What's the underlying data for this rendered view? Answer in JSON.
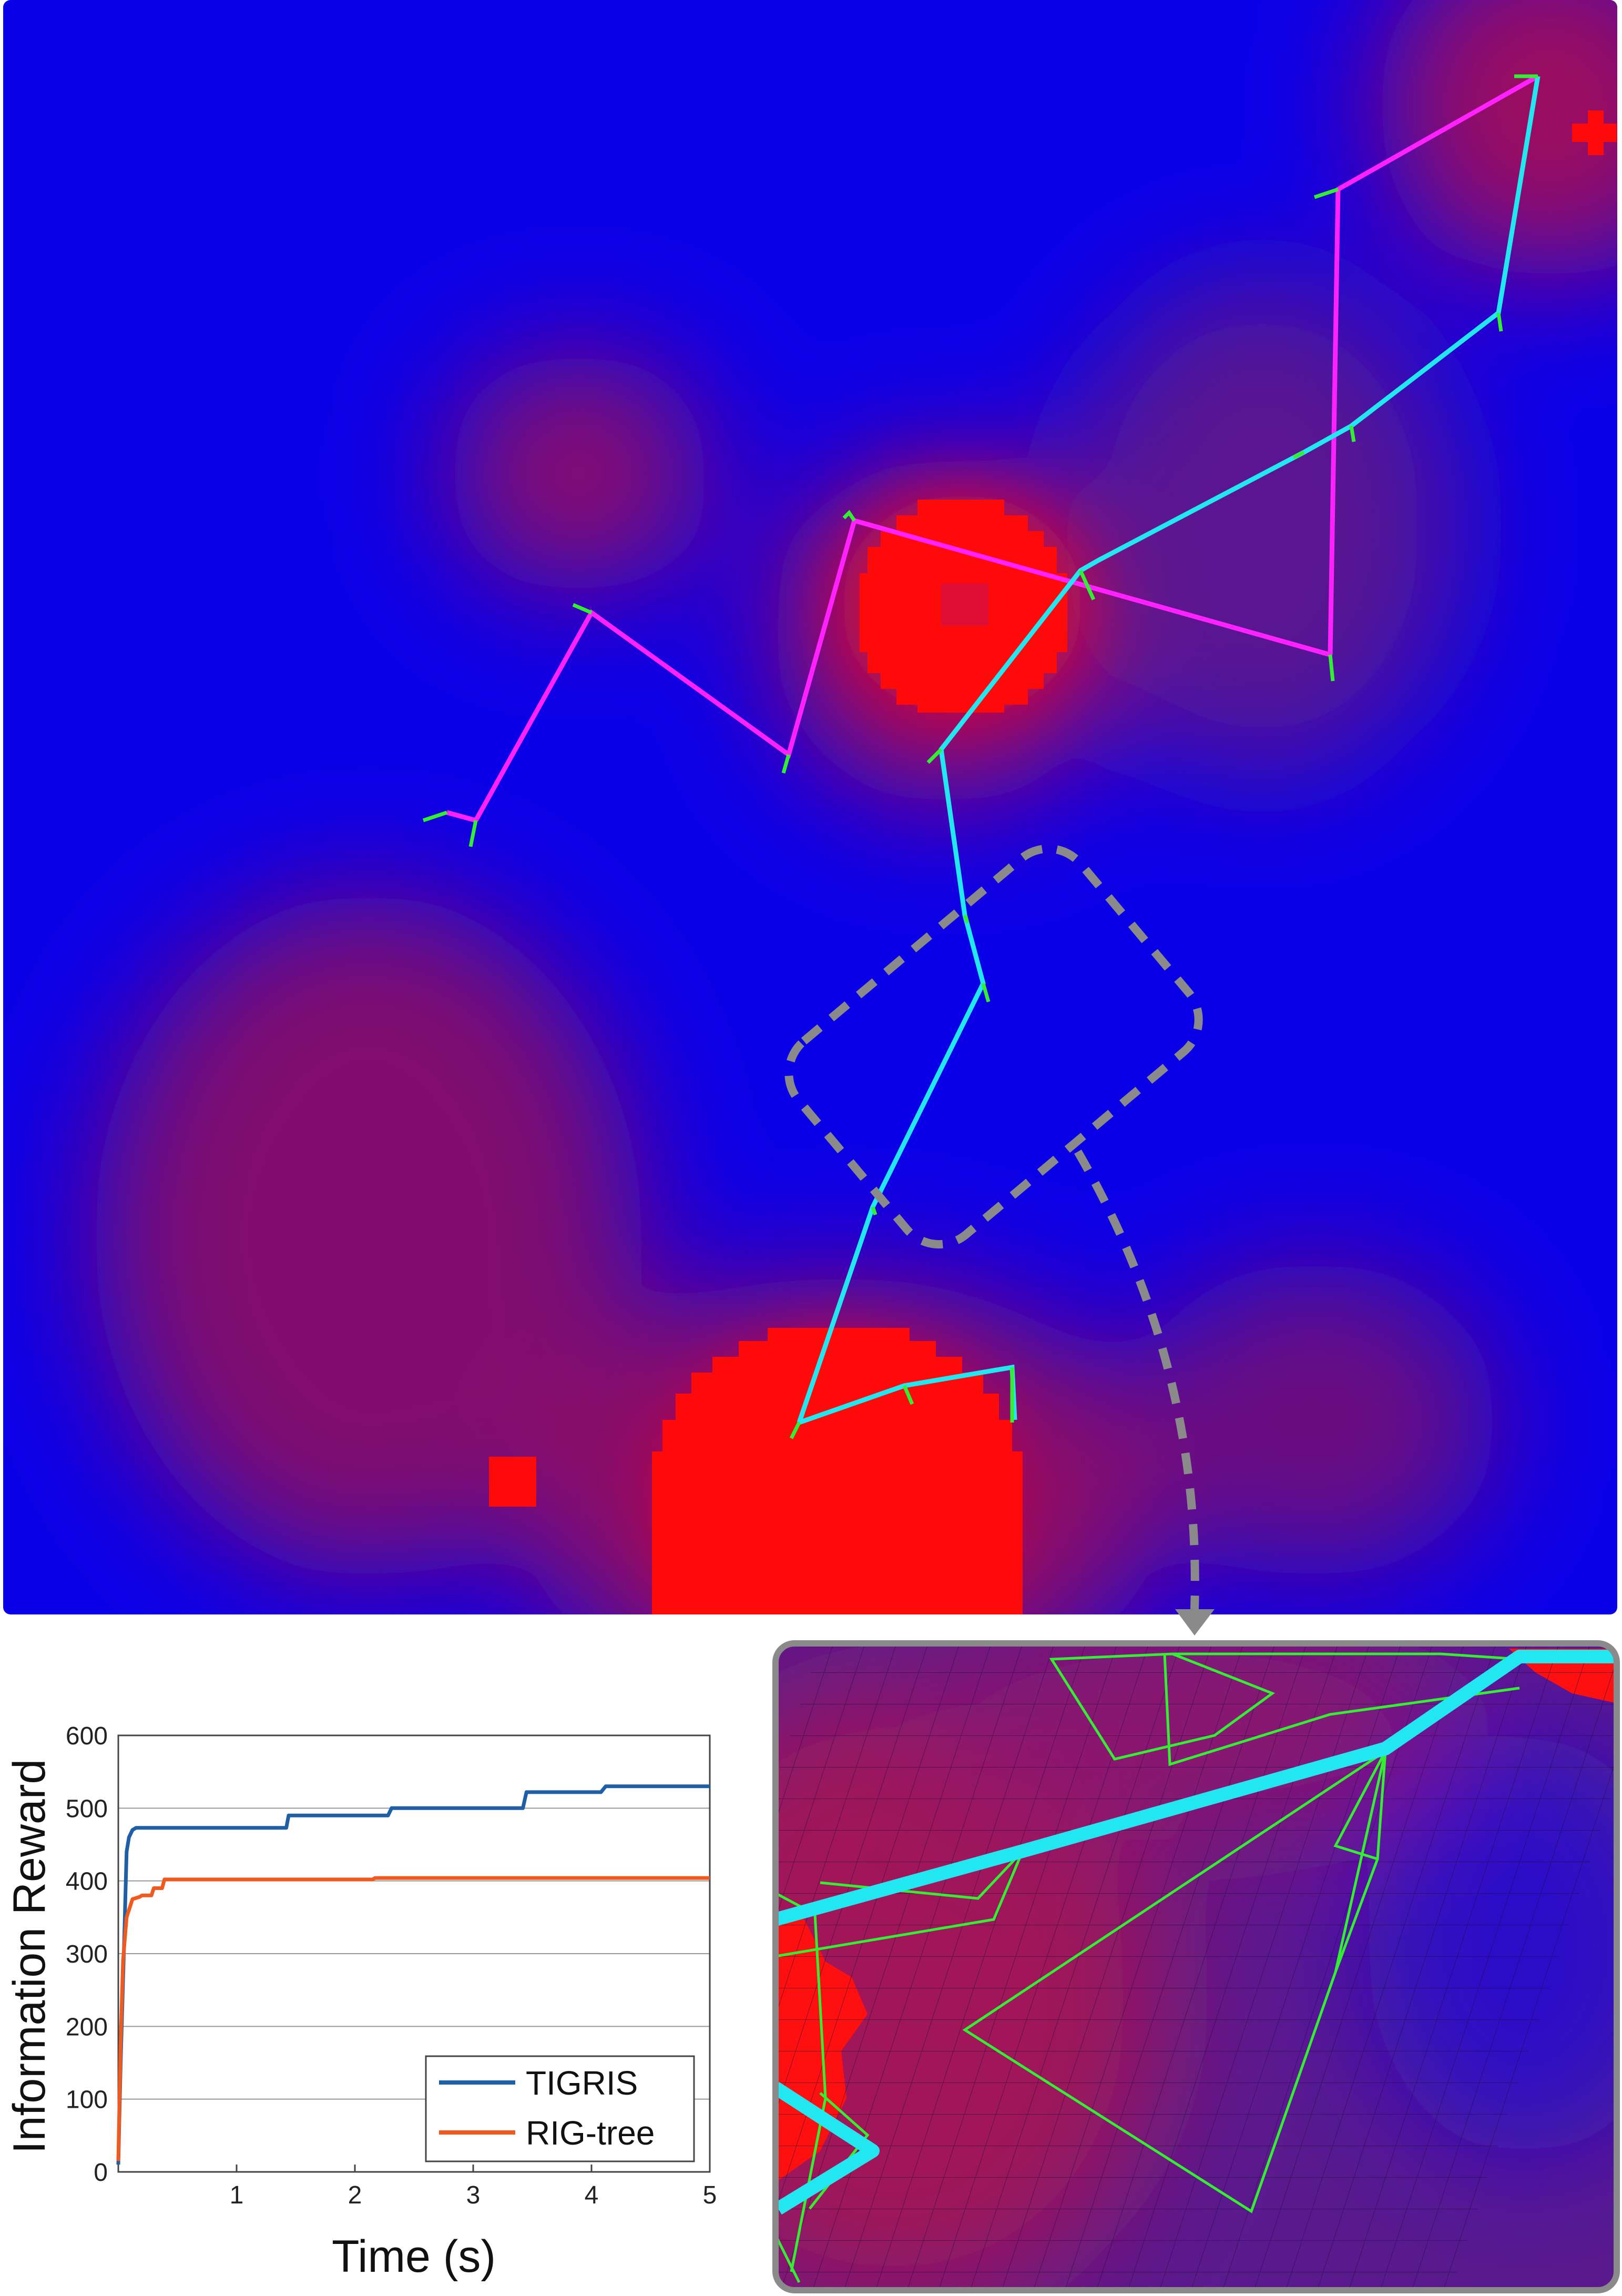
{
  "colors": {
    "heatmap_low": "#0a00e8",
    "heatmap_high": "#ff0000",
    "tigris_path": "#22e6f0",
    "rig_tree_path": "#ff22ff",
    "tree_edges": "#33ee33",
    "callout_dash": "#8a8a8a",
    "tigris_series": "#1f5fa6",
    "rig_tree_series": "#f05a1e"
  },
  "map_view": {
    "icons": [
      "dashed-rounded-callout",
      "dashed-curved-arrow"
    ]
  },
  "zoom_inset": {
    "description_icons": [
      "grid-plane",
      "search-tree-wireframe"
    ]
  },
  "chart_data": {
    "type": "line",
    "xlabel": "Time (s)",
    "ylabel": "Information Reward",
    "xlim": [
      0,
      5
    ],
    "ylim": [
      0,
      600
    ],
    "xticks": [
      "1",
      "2",
      "3",
      "4",
      "5"
    ],
    "yticks": [
      "0",
      "100",
      "200",
      "300",
      "400",
      "500",
      "600"
    ],
    "grid": "horizontal",
    "legend_position": "bottom-right",
    "series": [
      {
        "name": "TIGRIS",
        "x": [
          0.0,
          0.02,
          0.05,
          0.07,
          0.09,
          0.12,
          0.15,
          1.42,
          1.44,
          2.28,
          2.31,
          3.42,
          3.45,
          4.08,
          4.12,
          5.0
        ],
        "y": [
          10,
          150,
          320,
          440,
          460,
          470,
          473,
          473,
          490,
          490,
          500,
          500,
          522,
          522,
          530,
          530
        ]
      },
      {
        "name": "RIG-tree",
        "x": [
          0.0,
          0.02,
          0.04,
          0.07,
          0.09,
          0.12,
          0.18,
          0.2,
          0.28,
          0.3,
          0.37,
          0.39,
          2.15,
          2.17,
          5.0
        ],
        "y": [
          15,
          180,
          290,
          350,
          360,
          375,
          378,
          380,
          380,
          390,
          390,
          402,
          402,
          404,
          404
        ]
      }
    ]
  }
}
